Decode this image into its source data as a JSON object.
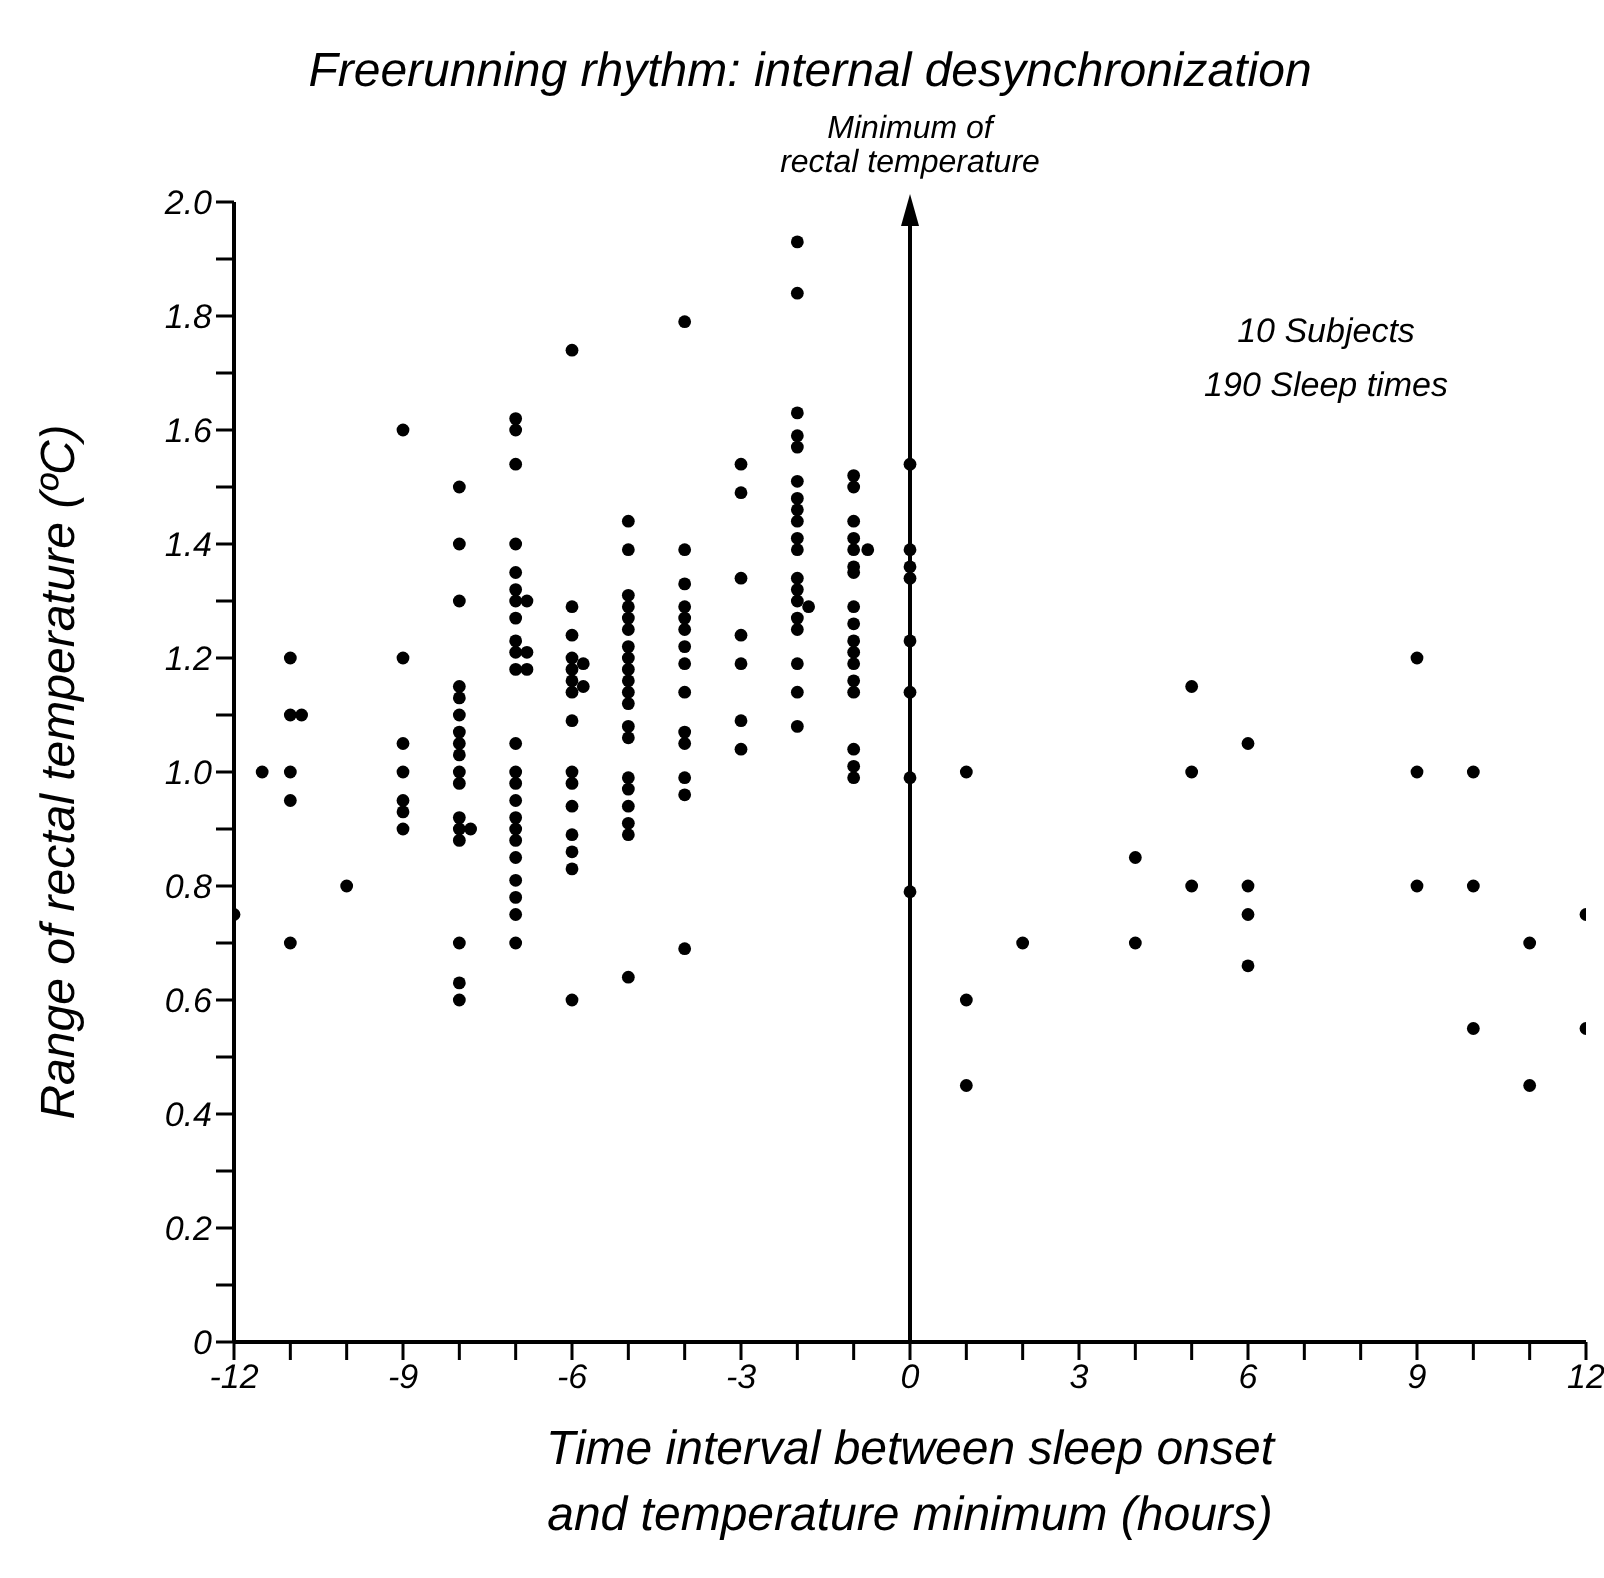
{
  "chart_data": {
    "type": "scatter",
    "title": "Freerunning rhythm: internal desynchronization",
    "xlabel": "Time interval between sleep onset\nand temperature minimum (hours)",
    "ylabel": "Range of rectal temperature (ºC)",
    "xlim": [
      -12,
      12
    ],
    "xticks": [
      -12,
      {
        "value": -11,
        "label": null
      },
      {
        "value": -10,
        "label": null
      },
      -9,
      {
        "value": -8,
        "label": null
      },
      {
        "value": -7,
        "label": null
      },
      -6,
      {
        "value": -5,
        "label": null
      },
      {
        "value": -4,
        "label": null
      },
      -3,
      {
        "value": -2,
        "label": null
      },
      {
        "value": -1,
        "label": null
      },
      0,
      {
        "value": 1,
        "label": null
      },
      {
        "value": 2,
        "label": null
      },
      3,
      {
        "value": 4,
        "label": null
      },
      {
        "value": 5,
        "label": null
      },
      6,
      {
        "value": 7,
        "label": null
      },
      {
        "value": 8,
        "label": null
      },
      9,
      {
        "value": 10,
        "label": null
      },
      {
        "value": 11,
        "label": null
      },
      12
    ],
    "ylim": [
      0,
      2
    ],
    "yticks": [
      0,
      {
        "value": 0.1,
        "label": null
      },
      0.2,
      {
        "value": 0.3,
        "label": null
      },
      0.4,
      {
        "value": 0.5,
        "label": null
      },
      0.6,
      {
        "value": 0.7,
        "label": null
      },
      0.8,
      {
        "value": 0.9,
        "label": null
      },
      {
        "value": 1,
        "label": "1.0"
      },
      {
        "value": 1.1,
        "label": null
      },
      1.2,
      {
        "value": 1.3,
        "label": null
      },
      1.4,
      {
        "value": 1.5,
        "label": null
      },
      1.6,
      {
        "value": 1.7,
        "label": null
      },
      1.8,
      {
        "value": 1.9,
        "label": null
      },
      {
        "value": 2,
        "label": "2.0"
      }
    ],
    "marker": "circle",
    "ref_lines": [
      {
        "axis": "x",
        "value": 0,
        "label": "Minimum of\nrectal temperature"
      }
    ],
    "annotations": [
      "10 Subjects",
      "190 Sleep times"
    ],
    "series": [
      {
        "color": "#000000",
        "x": [
          -12,
          -11.5,
          -11,
          -11,
          -10.8,
          -11,
          -11,
          -11,
          -10,
          -9,
          -9,
          -9,
          -9,
          -9,
          -9,
          -9,
          -8,
          -8,
          -8,
          -8,
          -8,
          -8,
          -8,
          -8,
          -8,
          -8,
          -8,
          -8,
          -8,
          -8,
          -8,
          -8,
          -8,
          -7.8,
          -7,
          -7,
          -7,
          -7,
          -7,
          -7,
          -7,
          -7,
          -7,
          -7,
          -7,
          -7,
          -7,
          -7,
          -7,
          -7,
          -7,
          -7,
          -7,
          -7,
          -7,
          -7,
          -7,
          -6.8,
          -6.8,
          -6.8,
          -6,
          -6,
          -6,
          -6,
          -6,
          -6,
          -6,
          -6,
          -6,
          -6,
          -6,
          -6,
          -6,
          -6,
          -6,
          -5.8,
          -5.8,
          -5,
          -5,
          -5,
          -5,
          -5,
          -5,
          -5,
          -5,
          -5,
          -5,
          -5,
          -5,
          -5,
          -5,
          -5,
          -5,
          -5,
          -5,
          -5,
          -5,
          -4,
          -4,
          -4,
          -4,
          -4,
          -4,
          -4,
          -4,
          -4,
          -4,
          -4,
          -4,
          -4,
          -4,
          -3,
          -3,
          -3,
          -3,
          -3,
          -3,
          -3,
          -2,
          -2,
          -2,
          -2,
          -2,
          -2,
          -2,
          -2,
          -2,
          -2,
          -2,
          -2,
          -2,
          -2,
          -2,
          -2,
          -2,
          -2,
          -2,
          -1.8,
          -1,
          -1,
          -1,
          -1,
          -1,
          -1,
          -1,
          -1,
          -1,
          -1,
          -1,
          -1,
          -1,
          -1,
          -1,
          -1,
          -1,
          -0.75,
          0,
          0,
          0,
          0,
          0,
          0,
          0,
          0,
          1,
          1,
          1,
          2,
          4,
          4,
          5,
          5,
          5,
          6,
          6,
          6,
          6,
          9,
          9,
          9,
          10,
          10,
          10,
          11,
          11,
          12,
          12
        ],
        "values": [
          0.75,
          1.0,
          1.2,
          1.1,
          1.1,
          1.0,
          0.95,
          0.7,
          0.8,
          1.6,
          1.2,
          1.05,
          1.0,
          0.95,
          0.93,
          0.9,
          1.5,
          1.4,
          1.3,
          1.15,
          1.13,
          1.1,
          1.07,
          1.05,
          1.03,
          1.0,
          0.98,
          0.92,
          0.9,
          0.88,
          0.7,
          0.63,
          0.6,
          0.9,
          1.62,
          1.6,
          1.54,
          1.4,
          1.35,
          1.32,
          1.3,
          1.27,
          1.23,
          1.21,
          1.18,
          1.05,
          1.0,
          0.98,
          0.95,
          0.92,
          0.9,
          0.88,
          0.85,
          0.81,
          0.78,
          0.75,
          0.7,
          1.3,
          1.21,
          1.18,
          1.74,
          1.29,
          1.24,
          1.2,
          1.18,
          1.16,
          1.14,
          1.09,
          1.0,
          0.98,
          0.94,
          0.89,
          0.86,
          0.83,
          0.6,
          1.19,
          1.15,
          1.44,
          1.39,
          1.31,
          1.29,
          1.27,
          1.25,
          1.22,
          1.2,
          1.18,
          1.16,
          1.14,
          1.12,
          1.08,
          1.06,
          0.99,
          0.97,
          0.94,
          0.91,
          0.89,
          0.64,
          1.79,
          1.39,
          1.33,
          1.29,
          1.27,
          1.25,
          1.22,
          1.19,
          1.14,
          1.07,
          1.05,
          0.99,
          0.96,
          0.69,
          1.54,
          1.49,
          1.34,
          1.24,
          1.19,
          1.09,
          1.04,
          1.93,
          1.84,
          1.63,
          1.59,
          1.57,
          1.51,
          1.48,
          1.46,
          1.44,
          1.41,
          1.39,
          1.34,
          1.32,
          1.3,
          1.27,
          1.25,
          1.19,
          1.14,
          1.08,
          1.29,
          1.52,
          1.5,
          1.44,
          1.41,
          1.39,
          1.36,
          1.35,
          1.29,
          1.26,
          1.23,
          1.21,
          1.19,
          1.16,
          1.14,
          1.04,
          1.01,
          0.99,
          1.39,
          1.54,
          1.39,
          1.36,
          1.34,
          1.23,
          1.14,
          0.99,
          0.79,
          1.0,
          0.6,
          0.45,
          0.7,
          0.85,
          0.7,
          1.15,
          1.0,
          0.8,
          1.05,
          0.8,
          0.75,
          0.66,
          1.2,
          1.0,
          0.8,
          1.0,
          0.8,
          0.55,
          0.7,
          0.45,
          0.75,
          0.55
        ]
      }
    ]
  }
}
